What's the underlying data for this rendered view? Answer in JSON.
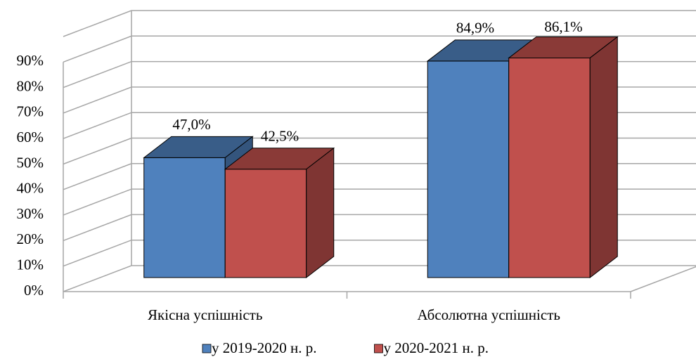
{
  "chart_data": {
    "type": "bar3d",
    "categories": [
      "Якісна успішність",
      "Абсолютна успішність"
    ],
    "series": [
      {
        "name": "у 2019-2020 н. р.",
        "color": "#4f81bd",
        "values": [
          47.0,
          84.9
        ],
        "value_labels": [
          "47,0%",
          "84,9%"
        ]
      },
      {
        "name": "у 2020-2021 н. р.",
        "color": "#c0504d",
        "values": [
          42.5,
          86.1
        ],
        "value_labels": [
          "42,5%",
          "86,1%"
        ]
      }
    ],
    "ylim": [
      0,
      100
    ],
    "yticks": [
      {
        "value": 0,
        "label": "0%"
      },
      {
        "value": 10,
        "label": "10%"
      },
      {
        "value": 20,
        "label": "20%"
      },
      {
        "value": 30,
        "label": "30%"
      },
      {
        "value": 40,
        "label": "40%"
      },
      {
        "value": 50,
        "label": "50%"
      },
      {
        "value": 60,
        "label": "60%"
      },
      {
        "value": 70,
        "label": "70%"
      },
      {
        "value": 80,
        "label": "80%"
      },
      {
        "value": 90,
        "label": "90%"
      }
    ],
    "grid": true,
    "legend": "bottom"
  }
}
